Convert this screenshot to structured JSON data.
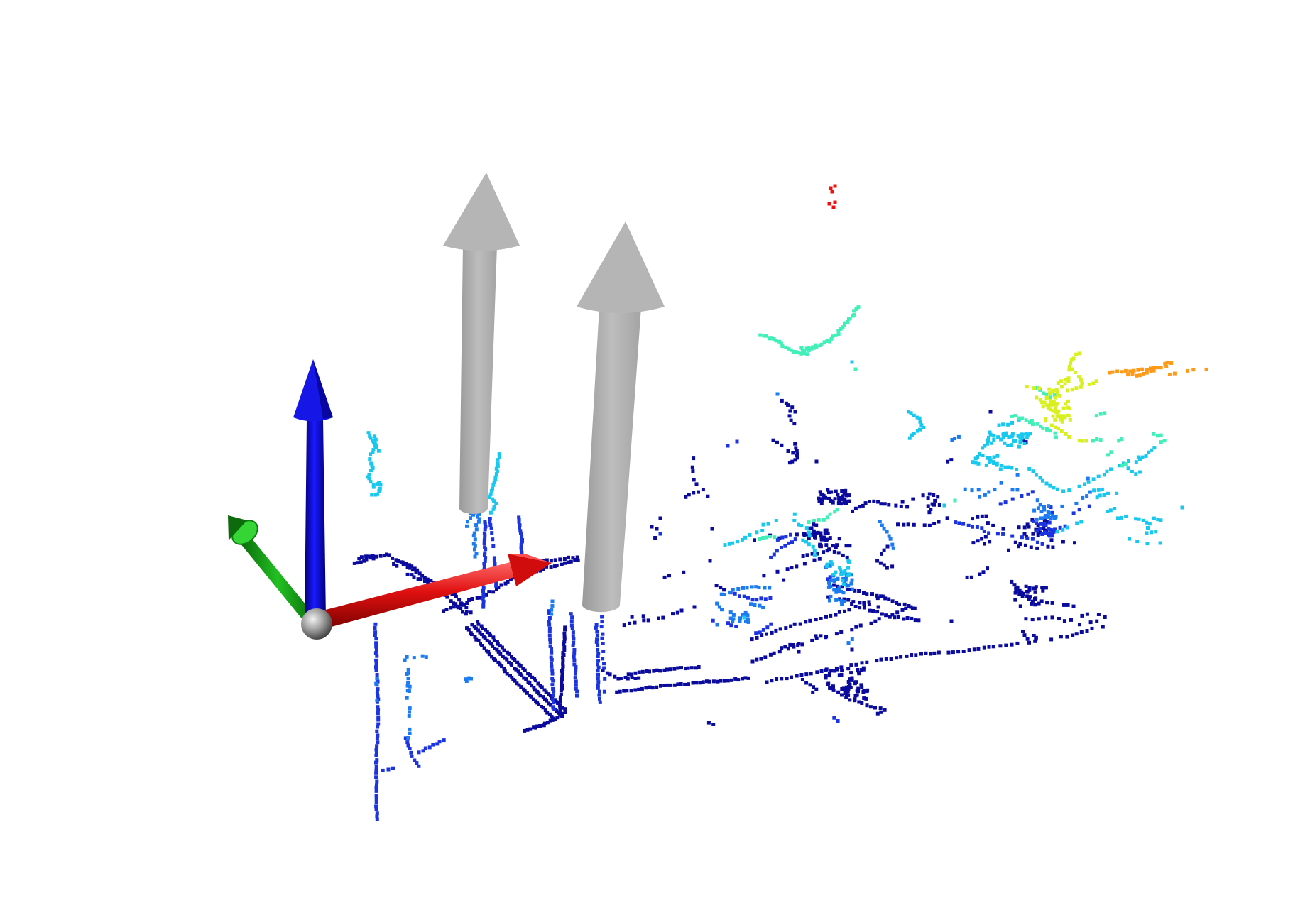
{
  "scene": {
    "background": "#ffffff",
    "axis_colors": {
      "x": "#e01010",
      "y": "#10b010",
      "z": "#1010e8",
      "origin": "#9a9a9a"
    },
    "marker_color": "#b3b3b3",
    "colormap": "jet",
    "point_layers": [
      "deep",
      "blue",
      "mid",
      "cyan",
      "green",
      "yellow",
      "orange",
      "red"
    ]
  }
}
